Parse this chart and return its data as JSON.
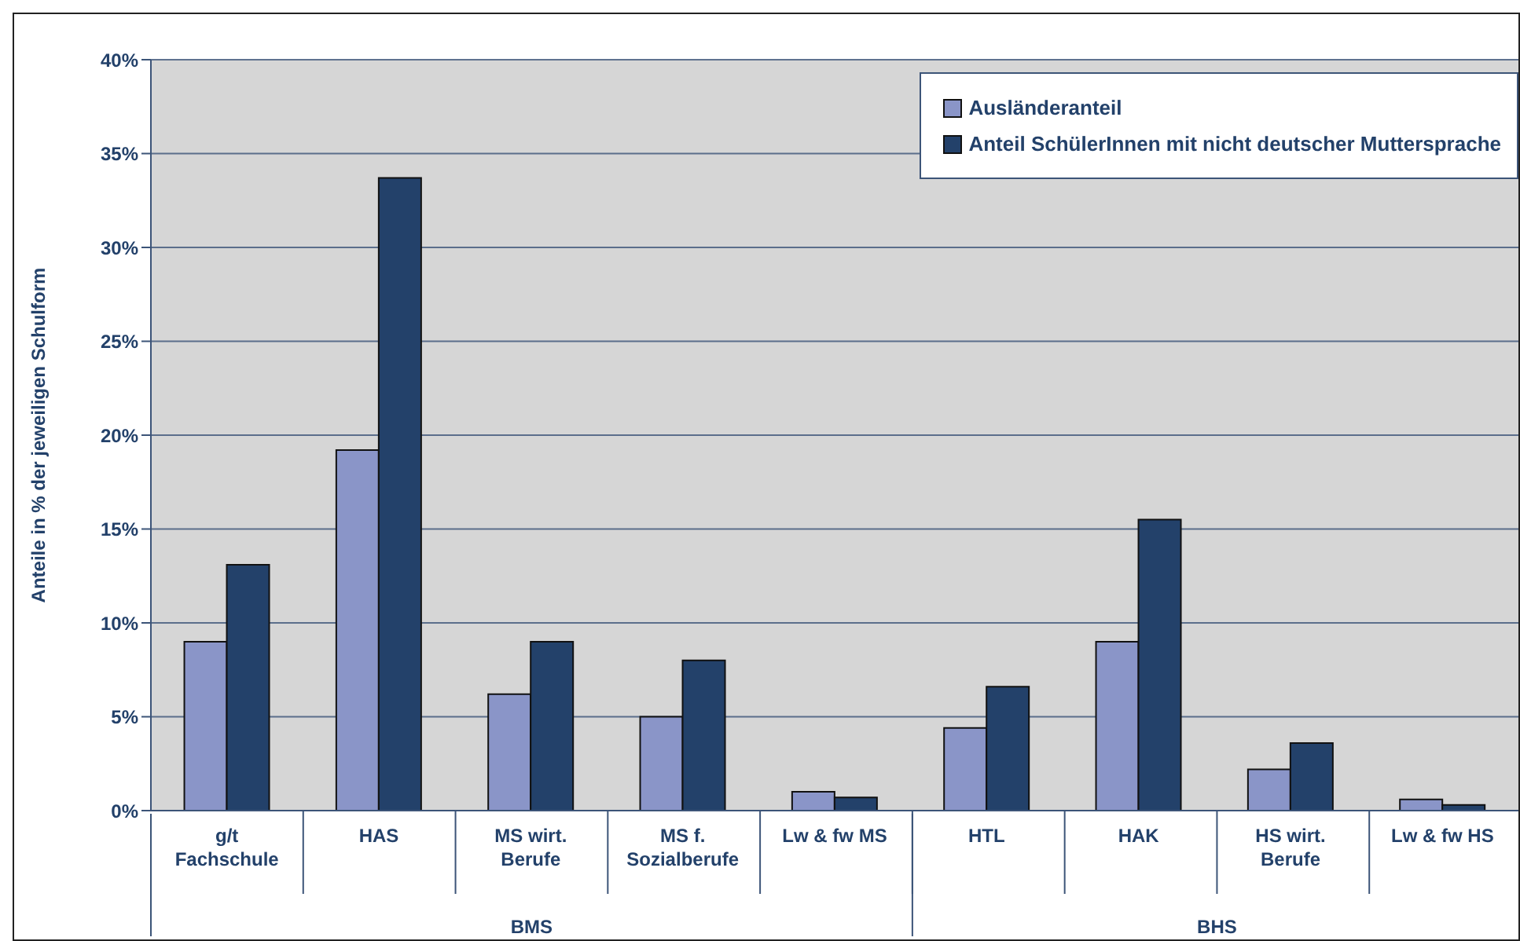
{
  "chart_data": {
    "type": "bar",
    "ylabel": "Anteile in % der jeweiligen Schulform",
    "categories": [
      "g/t Fachschule",
      "HAS",
      "MS wirt. Berufe",
      "MS f. Sozialberufe",
      "Lw & fw MS",
      "HTL",
      "HAK",
      "HS wirt. Berufe",
      "Lw & fw HS"
    ],
    "series": [
      {
        "name": "Ausländeranteil",
        "color": "#8a95c8",
        "values": [
          9.0,
          19.2,
          6.2,
          5.0,
          1.0,
          4.4,
          9.0,
          2.2,
          0.6
        ]
      },
      {
        "name": "Anteil SchülerInnen mit nicht deutscher Muttersprache",
        "color": "#23416a",
        "values": [
          13.1,
          33.7,
          9.0,
          8.0,
          0.7,
          6.6,
          15.5,
          3.6,
          0.3
        ]
      }
    ],
    "ylim": [
      0,
      40
    ],
    "yticks": [
      {
        "value": 0,
        "label": "0%"
      },
      {
        "value": 5,
        "label": "5%"
      },
      {
        "value": 10,
        "label": "10%"
      },
      {
        "value": 15,
        "label": "15%"
      },
      {
        "value": 20,
        "label": "20%"
      },
      {
        "value": 25,
        "label": "25%"
      },
      {
        "value": 30,
        "label": "30%"
      },
      {
        "value": 35,
        "label": "35%"
      },
      {
        "value": 40,
        "label": "40%"
      }
    ],
    "grid": "y",
    "legend": "top right",
    "annotations": [
      "BMS",
      "BHS"
    ]
  }
}
